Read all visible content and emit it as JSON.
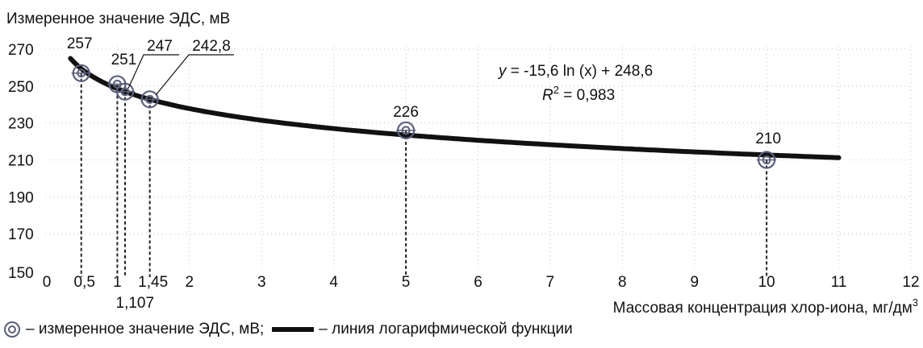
{
  "chart_data": {
    "type": "scatter",
    "ylabel": "Измеренное значение ЭДС, мВ",
    "xlabel_main": "Массовая концентрация хлор-иона, мг/дм",
    "xlabel_sup": "3",
    "xlim": [
      0,
      12
    ],
    "ylim": [
      150,
      270
    ],
    "xticks": [
      "0",
      "1",
      "2",
      "3",
      "4",
      "5",
      "6",
      "7",
      "8",
      "9",
      "10",
      "11",
      "12"
    ],
    "yticks": [
      "270",
      "250",
      "230",
      "210",
      "190",
      "170",
      "150"
    ],
    "extra_xtick_labels": [
      {
        "x": 0.5,
        "label": "0,5"
      },
      {
        "x": 1.45,
        "label": "1,45"
      },
      {
        "x": 1.107,
        "label": "1,107"
      }
    ],
    "points": [
      {
        "x": 0.5,
        "y": 257,
        "label": "257"
      },
      {
        "x": 1,
        "y": 251,
        "label": "251"
      },
      {
        "x": 1.107,
        "y": 247,
        "label": "247"
      },
      {
        "x": 1.45,
        "y": 242.8,
        "label": "242,8"
      },
      {
        "x": 5,
        "y": 226,
        "label": "226"
      },
      {
        "x": 10,
        "y": 210,
        "label": "210"
      }
    ],
    "fit": {
      "a": -15.6,
      "b": 248.6,
      "x_from": 0.35,
      "x_to": 11
    },
    "equation": {
      "y_prefix": "y",
      "rest": " = -15,6 ln (x) + 248,6",
      "r_prefix": "R",
      "r_sup": "2",
      "r_rest": " = 0,983"
    },
    "legend": {
      "marker_text": "– измеренное значение ЭДС, мВ;",
      "line_text": "– линия логарифмической функции"
    },
    "colors": {
      "line": "#111111",
      "marker": "#5a5f7a",
      "grid": "#b8b8b8",
      "dashed": "#222222"
    }
  }
}
